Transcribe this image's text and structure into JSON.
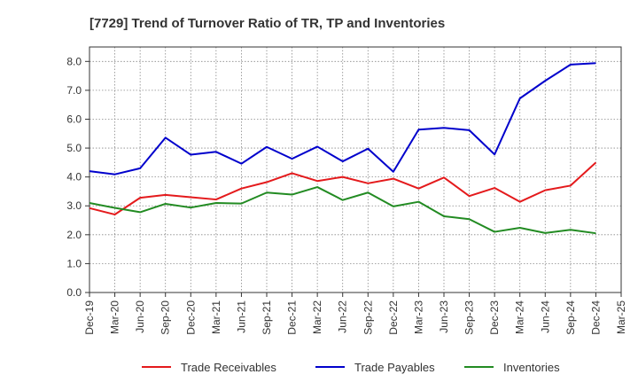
{
  "chart_data": {
    "type": "line",
    "title": "[7729]  Trend of Turnover Ratio of TR, TP and Inventories",
    "xlabel": "",
    "ylabel": "",
    "ylim": [
      0,
      8.5
    ],
    "yticks": [
      "0.0",
      "1.0",
      "2.0",
      "3.0",
      "4.0",
      "5.0",
      "6.0",
      "7.0",
      "8.0"
    ],
    "x_tick_labels": [
      "Dec-19",
      "Mar-20",
      "Jun-20",
      "Sep-20",
      "Dec-20",
      "Mar-21",
      "Jun-21",
      "Sep-21",
      "Dec-21",
      "Mar-22",
      "Jun-22",
      "Sep-22",
      "Dec-22",
      "Mar-23",
      "Jun-23",
      "Sep-23",
      "Dec-23",
      "Mar-24",
      "Jun-24",
      "Sep-24",
      "Dec-24",
      "Mar-25"
    ],
    "categories": [
      "Dec-19",
      "Mar-20",
      "Jun-20",
      "Sep-20",
      "Dec-20",
      "Mar-21",
      "Jun-21",
      "Sep-21",
      "Dec-21",
      "Mar-22",
      "Jun-22",
      "Sep-22",
      "Dec-22",
      "Mar-23",
      "Jun-23",
      "Sep-23",
      "Dec-23",
      "Mar-24",
      "Jun-24",
      "Sep-24",
      "Dec-24"
    ],
    "grid": true,
    "legend_position": "bottom",
    "series": [
      {
        "name": "Trade Receivables",
        "color": "#e41a1c",
        "values": [
          2.92,
          2.7,
          3.28,
          3.38,
          3.3,
          3.22,
          3.6,
          3.82,
          4.13,
          3.86,
          4.0,
          3.78,
          3.94,
          3.6,
          3.98,
          3.34,
          3.62,
          3.14,
          3.54,
          3.7,
          4.5
        ]
      },
      {
        "name": "Trade Payables",
        "color": "#0000cc",
        "values": [
          4.2,
          4.09,
          4.3,
          5.36,
          4.77,
          4.87,
          4.46,
          5.04,
          4.63,
          5.05,
          4.54,
          4.98,
          4.18,
          5.64,
          5.7,
          5.62,
          4.78,
          6.72,
          7.33,
          7.89,
          7.94
        ]
      },
      {
        "name": "Inventories",
        "color": "#228b22",
        "values": [
          3.1,
          2.93,
          2.78,
          3.07,
          2.94,
          3.1,
          3.08,
          3.46,
          3.39,
          3.65,
          3.2,
          3.46,
          2.98,
          3.14,
          2.64,
          2.54,
          2.1,
          2.24,
          2.06,
          2.17,
          2.05
        ]
      }
    ]
  }
}
